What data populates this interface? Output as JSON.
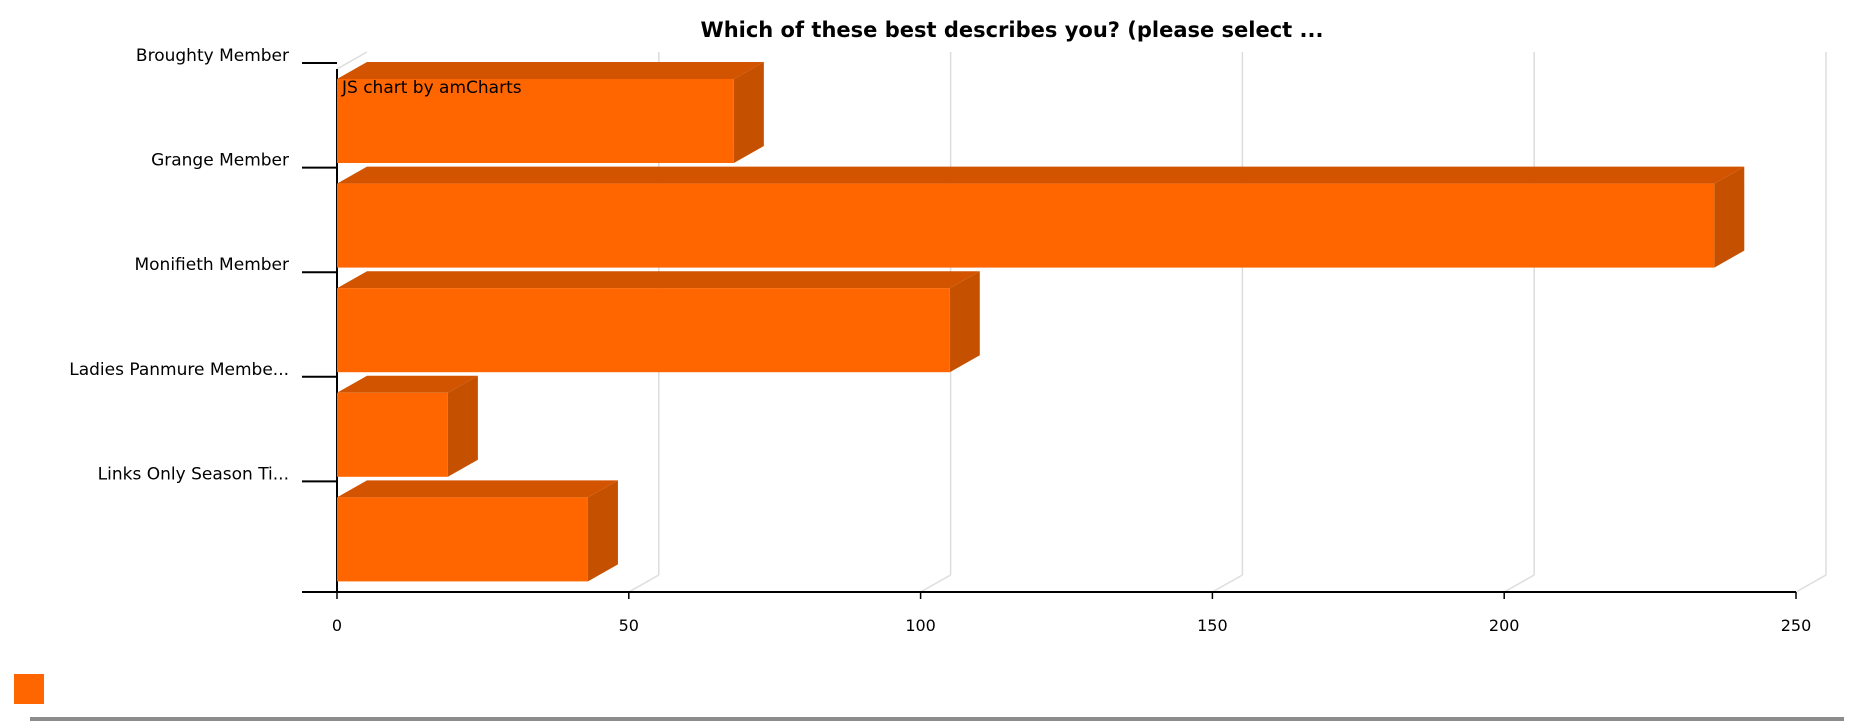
{
  "chart_data": {
    "type": "bar",
    "orientation": "horizontal",
    "title": "Which of these best describes you? (please select ...",
    "categories": [
      "Broughty Member",
      "Grange Member",
      "Monifieth Member",
      "Ladies Panmure Membe...",
      "Links Only Season Ti..."
    ],
    "series": [
      {
        "values": [
          68,
          236,
          105,
          19,
          43
        ]
      }
    ],
    "x_ticks": [
      0,
      50,
      100,
      150,
      200,
      250
    ],
    "xlim": [
      0,
      250
    ],
    "grid": true,
    "three_d": true,
    "colors": {
      "bar_front": "#ff6600",
      "bar_top": "#d25400",
      "bar_side": "#c55000",
      "grid": "#dddddd",
      "axis": "#000000"
    },
    "legend_placement": "bottom-left",
    "credit": "JS chart by amCharts"
  }
}
